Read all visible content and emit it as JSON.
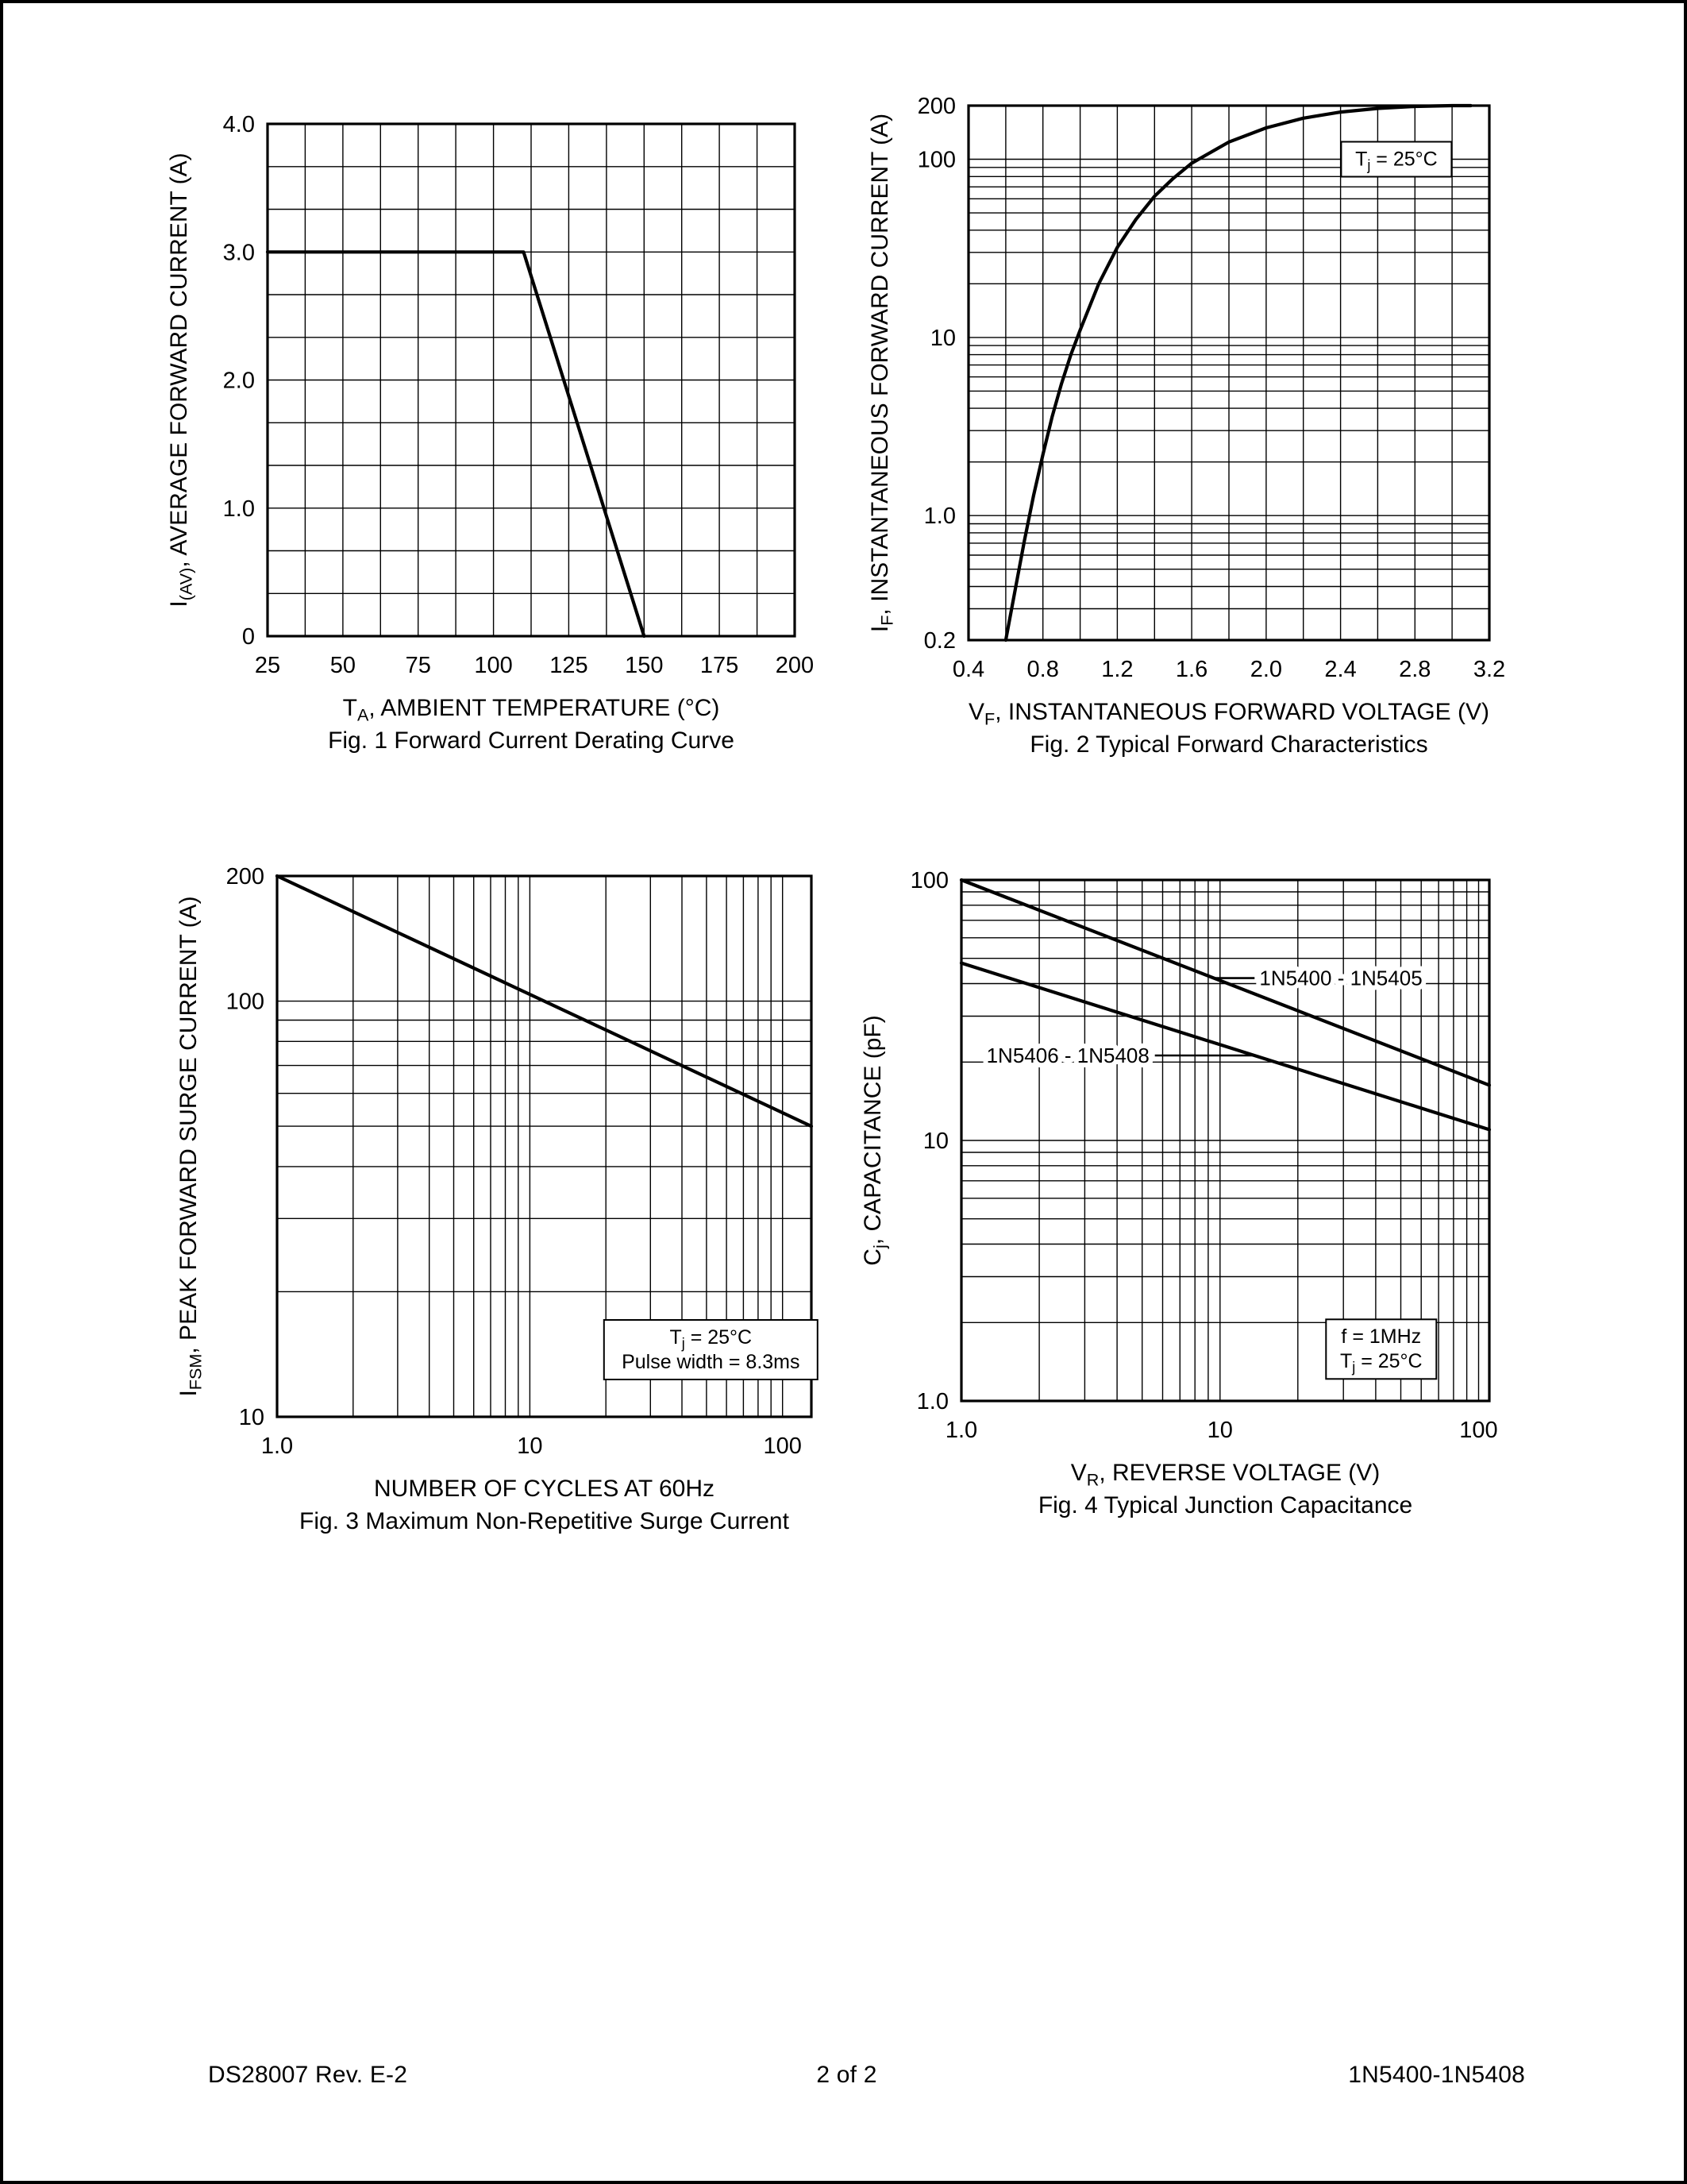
{
  "page": {
    "footer_left": "DS28007 Rev. E-2",
    "footer_center": "2 of 2",
    "footer_right": "1N5400-1N5408"
  },
  "chart_data": [
    {
      "name": "fig1-forward-current-derating-curve",
      "type": "line",
      "title": "Fig. 1  Forward Current Derating Curve",
      "xlabel": "T_{A}, AMBIENT TEMPERATURE (°C)",
      "ylabel": "I_{(AV)}, AVERAGE FORWARD CURRENT (A)",
      "x": {
        "scale": "linear",
        "min": 25,
        "max": 200,
        "ticks": [
          25,
          50,
          75,
          100,
          125,
          150,
          175,
          200
        ],
        "tick_labels": [
          "25",
          "50",
          "75",
          "100",
          "125",
          "150",
          "175",
          "200"
        ],
        "minor_divisions": 2
      },
      "y": {
        "scale": "linear",
        "min": 0,
        "max": 4,
        "ticks": [
          0,
          1,
          2,
          3,
          4
        ],
        "tick_labels": [
          "0",
          "1.0",
          "2.0",
          "3.0",
          "4.0"
        ],
        "minor_divisions": 3
      },
      "grid": true,
      "series": [
        {
          "name": "average-forward-current-limit",
          "points": [
            [
              25,
              3.0
            ],
            [
              110,
              3.0
            ],
            [
              150,
              0
            ]
          ]
        }
      ]
    },
    {
      "name": "fig2-typical-forward-characteristics",
      "type": "line",
      "title": "Fig. 2  Typical Forward Characteristics",
      "xlabel": "V_{F}, INSTANTANEOUS FORWARD VOLTAGE (V)",
      "ylabel": "I_{F}, INSTANTANEOUS FORWARD CURRENT (A)",
      "x": {
        "scale": "linear",
        "min": 0.4,
        "max": 3.2,
        "ticks": [
          0.4,
          0.8,
          1.2,
          1.6,
          2.0,
          2.4,
          2.8,
          3.2
        ],
        "tick_labels": [
          "0.4",
          "0.8",
          "1.2",
          "1.6",
          "2.0",
          "2.4",
          "2.8",
          "3.2"
        ],
        "minor_divisions": 2
      },
      "y": {
        "scale": "log",
        "min": 0.2,
        "max": 200,
        "ticks": [
          0.2,
          1,
          10,
          100,
          200
        ],
        "tick_labels": [
          "0.2",
          "1.0",
          "10",
          "100",
          "200"
        ]
      },
      "grid": true,
      "series": [
        {
          "name": "instantaneous-forward-current",
          "points": [
            [
              0.6,
              0.2
            ],
            [
              0.65,
              0.38
            ],
            [
              0.7,
              0.72
            ],
            [
              0.75,
              1.3
            ],
            [
              0.8,
              2.2
            ],
            [
              0.85,
              3.6
            ],
            [
              0.9,
              5.5
            ],
            [
              0.95,
              8.0
            ],
            [
              1.0,
              11
            ],
            [
              1.1,
              20
            ],
            [
              1.2,
              32
            ],
            [
              1.3,
              46
            ],
            [
              1.4,
              62
            ],
            [
              1.5,
              78
            ],
            [
              1.6,
              95
            ],
            [
              1.8,
              125
            ],
            [
              2.0,
              150
            ],
            [
              2.2,
              170
            ],
            [
              2.4,
              184
            ],
            [
              2.6,
              193
            ],
            [
              2.8,
              198
            ],
            [
              3.0,
              200
            ],
            [
              3.1,
              200
            ]
          ]
        }
      ],
      "annotations": [
        {
          "lines": [
            "T_{j} = 25°C"
          ],
          "x": 2.7,
          "y": 100
        }
      ]
    },
    {
      "name": "fig3-maximum-non-repetitive-surge-current",
      "type": "line",
      "title": "Fig. 3  Maximum Non-Repetitive Surge Current",
      "xlabel": "NUMBER OF CYCLES AT 60Hz",
      "ylabel": "I_{FSM}, PEAK FORWARD SURGE CURRENT (A)",
      "x": {
        "scale": "log",
        "min": 1,
        "max": 130,
        "ticks": [
          1,
          10,
          100
        ],
        "tick_labels": [
          "1.0",
          "10",
          "100"
        ]
      },
      "y": {
        "scale": "log",
        "min": 10,
        "max": 200,
        "ticks": [
          10,
          100,
          200
        ],
        "tick_labels": [
          "10",
          "100",
          "200"
        ]
      },
      "grid": true,
      "series": [
        {
          "name": "peak-forward-surge-current",
          "points": [
            [
              1,
              200
            ],
            [
              130,
              50
            ]
          ]
        }
      ],
      "annotations": [
        {
          "lines": [
            "T_{j} = 25°C",
            "Pulse width = 8.3ms"
          ],
          "x": 52,
          "y": 14.5
        }
      ]
    },
    {
      "name": "fig4-typical-junction-capacitance",
      "type": "line",
      "title": "Fig. 4  Typical Junction Capacitance",
      "xlabel": "V_{R}, REVERSE VOLTAGE (V)",
      "ylabel": "C_{j}, CAPACITANCE (pF)",
      "x": {
        "scale": "log",
        "min": 1,
        "max": 110,
        "ticks": [
          1,
          10,
          100
        ],
        "tick_labels": [
          "1.0",
          "10",
          "100"
        ]
      },
      "y": {
        "scale": "log",
        "min": 1,
        "max": 100,
        "ticks": [
          1,
          10,
          100
        ],
        "tick_labels": [
          "1.0",
          "10",
          "100"
        ]
      },
      "grid": true,
      "series": [
        {
          "name": "1N5400 - 1N5405",
          "points": [
            [
              1,
              100
            ],
            [
              110,
              16.3
            ]
          ]
        },
        {
          "name": "1N5406 - 1N5408",
          "points": [
            [
              1,
              48
            ],
            [
              110,
              11.0
            ]
          ]
        }
      ],
      "curve_labels": [
        {
          "text": "1N5400 - 1N5405",
          "x": 14.2,
          "y": 42,
          "anchor": "start"
        },
        {
          "text": "1N5406 - 1N5408",
          "x": 1.25,
          "y": 21.2,
          "anchor": "start"
        }
      ],
      "leaders": [
        [
          [
            9.6,
            42
          ],
          [
            13.6,
            42
          ]
        ],
        [
          [
            5.6,
            21.2
          ],
          [
            13.4,
            21.2
          ]
        ]
      ],
      "annotations": [
        {
          "lines": [
            "f = 1MHz",
            "T_{j} = 25°C"
          ],
          "x": 42,
          "y": 1.58
        }
      ]
    }
  ]
}
